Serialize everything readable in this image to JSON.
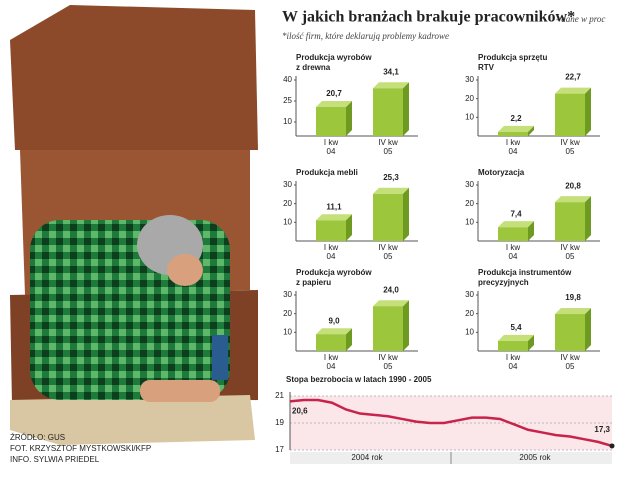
{
  "header": {
    "title": "W jakich branżach brakuje pracowników*",
    "subtitle": "- dane w proc",
    "note": "*ilość firm, które deklarują problemy kadrowe"
  },
  "credits": [
    "ŹRÓDŁO: GUS",
    "FOT. KRZYSZTOF MYSTKOWSKI/KFP",
    "INFO. SYLWIA PRIEDEL"
  ],
  "chart_data": [
    {
      "type": "bar",
      "title": [
        "Produkcja wyrobów",
        "z drewna"
      ],
      "categories": [
        [
          "I kw",
          "04"
        ],
        [
          "IV kw",
          "05"
        ]
      ],
      "values": [
        20.7,
        34.1
      ],
      "value_labels": [
        "20,7",
        "34,1"
      ],
      "ylim": [
        0,
        40
      ],
      "yticks": [
        10,
        25,
        40
      ],
      "color": "#9cc63b"
    },
    {
      "type": "bar",
      "title": [
        "Produkcja sprzętu",
        "RTV"
      ],
      "categories": [
        [
          "I kw",
          "04"
        ],
        [
          "IV kw",
          "05"
        ]
      ],
      "values": [
        2.2,
        22.7
      ],
      "value_labels": [
        "2,2",
        "22,7"
      ],
      "ylim": [
        0,
        30
      ],
      "yticks": [
        10,
        20,
        30
      ],
      "color": "#9cc63b"
    },
    {
      "type": "bar",
      "title": [
        "Produkcja mebli"
      ],
      "categories": [
        [
          "I kw",
          "04"
        ],
        [
          "IV kw",
          "05"
        ]
      ],
      "values": [
        11.1,
        25.3
      ],
      "value_labels": [
        "11,1",
        "25,3"
      ],
      "ylim": [
        0,
        30
      ],
      "yticks": [
        10,
        20,
        30
      ],
      "color": "#9cc63b"
    },
    {
      "type": "bar",
      "title": [
        "Motoryzacja"
      ],
      "categories": [
        [
          "I kw",
          "04"
        ],
        [
          "IV kw",
          "05"
        ]
      ],
      "values": [
        7.4,
        20.8
      ],
      "value_labels": [
        "7,4",
        "20,8"
      ],
      "ylim": [
        0,
        30
      ],
      "yticks": [
        10,
        20,
        30
      ],
      "color": "#9cc63b"
    },
    {
      "type": "bar",
      "title": [
        "Produkcja wyrobów",
        "z papieru"
      ],
      "categories": [
        [
          "I kw",
          "04"
        ],
        [
          "IV kw",
          "05"
        ]
      ],
      "values": [
        9.0,
        24.0
      ],
      "value_labels": [
        "9,0",
        "24,0"
      ],
      "ylim": [
        0,
        30
      ],
      "yticks": [
        10,
        20,
        30
      ],
      "color": "#9cc63b"
    },
    {
      "type": "bar",
      "title": [
        "Produkcja instrumentów",
        "precyzyjnych"
      ],
      "categories": [
        [
          "I kw",
          "04"
        ],
        [
          "IV kw",
          "05"
        ]
      ],
      "values": [
        5.4,
        19.8
      ],
      "value_labels": [
        "5,4",
        "19,8"
      ],
      "ylim": [
        0,
        30
      ],
      "yticks": [
        10,
        20,
        30
      ],
      "color": "#9cc63b"
    },
    {
      "type": "line",
      "title": "Stopa bezrobocia w latach 1990 - 2005",
      "color": "#c8234b",
      "categories": [
        null,
        null,
        null,
        null,
        null,
        "2004 rok",
        null,
        null,
        null,
        null,
        null,
        null,
        null,
        null,
        null,
        null,
        null,
        "2005 rok",
        null,
        null,
        null,
        null,
        null,
        null
      ],
      "values": [
        20.6,
        20.7,
        20.7,
        20.5,
        20.0,
        19.7,
        19.6,
        19.5,
        19.3,
        19.1,
        19.0,
        19.0,
        19.2,
        19.4,
        19.4,
        19.3,
        18.9,
        18.5,
        18.3,
        18.1,
        18.0,
        17.8,
        17.6,
        17.3
      ],
      "value_labels": [
        "20,6",
        null,
        null,
        null,
        null,
        null,
        null,
        null,
        null,
        null,
        null,
        null,
        null,
        null,
        null,
        null,
        null,
        null,
        null,
        null,
        null,
        null,
        null,
        "17,3"
      ],
      "ylim": [
        17,
        21
      ],
      "yticks": [
        17,
        19,
        21
      ]
    }
  ]
}
